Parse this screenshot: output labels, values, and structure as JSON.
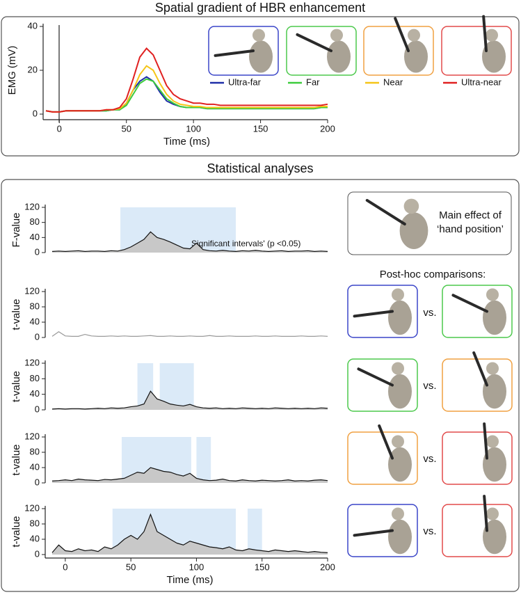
{
  "figure": {
    "title_top": "Spatial gradient of HBR enhancement",
    "title_bottom": "Statistical analyses",
    "main_effect": [
      "Main effect of",
      "‘hand position’"
    ],
    "post_hoc": "Post-hoc comparisons:",
    "vs": [
      "vs.",
      "vs.",
      "vs.",
      "vs."
    ]
  },
  "chart_data": [
    {
      "type": "line",
      "xlabel": "Time (ms)",
      "ylabel": "EMG (mV)",
      "xlim": [
        -10,
        200
      ],
      "ylim": [
        0,
        40
      ],
      "xticks": [
        0,
        50,
        100,
        150,
        200
      ],
      "yticks": [
        0,
        20,
        40
      ],
      "x": [
        -10,
        -5,
        0,
        5,
        10,
        15,
        20,
        25,
        30,
        35,
        40,
        45,
        50,
        55,
        60,
        65,
        70,
        75,
        80,
        85,
        90,
        95,
        100,
        105,
        110,
        115,
        120,
        125,
        130,
        135,
        140,
        145,
        150,
        155,
        160,
        165,
        170,
        175,
        180,
        185,
        190,
        195,
        200
      ],
      "series": [
        {
          "name": "Ultra-far",
          "color": "#1f2fa8",
          "values": [
            1.5,
            1,
            1,
            1.5,
            1.5,
            1.5,
            1.5,
            1.5,
            1.5,
            1.5,
            2,
            2,
            5,
            11,
            15,
            17,
            15,
            10,
            6,
            4.5,
            3.5,
            3,
            3,
            3,
            2.5,
            2.5,
            2.5,
            2.5,
            2.5,
            2.5,
            2.5,
            2.5,
            2.5,
            2.5,
            2.5,
            2.5,
            2.5,
            2.5,
            2.5,
            2.5,
            2.5,
            3,
            3
          ]
        },
        {
          "name": "Far",
          "color": "#3ccc3c",
          "values": [
            1.5,
            1,
            1,
            1.5,
            1.5,
            1.5,
            1.5,
            1.5,
            1.5,
            1.5,
            2,
            2,
            4,
            9,
            14,
            16,
            15,
            11,
            7,
            5,
            3.5,
            3,
            3,
            3,
            2.5,
            2.5,
            2.5,
            2.5,
            2.5,
            2.5,
            2.5,
            2.5,
            2.5,
            2.5,
            2.5,
            2.5,
            2.5,
            2.5,
            2.5,
            2.5,
            2.5,
            3,
            3
          ]
        },
        {
          "name": "Near",
          "color": "#f5c518",
          "values": [
            1.5,
            1,
            1,
            1.5,
            1.5,
            1.5,
            1.5,
            1.5,
            1.5,
            2,
            2,
            2.5,
            5,
            11,
            18,
            22,
            20,
            14,
            9,
            6,
            4.5,
            4,
            3.5,
            3.5,
            3,
            3,
            3,
            3,
            3,
            3,
            3,
            3,
            3,
            3,
            3,
            3,
            3,
            3,
            3,
            3,
            3,
            3.5,
            3.5
          ]
        },
        {
          "name": "Ultra-near",
          "color": "#e02020",
          "values": [
            1.5,
            1,
            1,
            1.5,
            1.5,
            1.5,
            1.5,
            1.5,
            1.5,
            2,
            2,
            3,
            7,
            16,
            26,
            30,
            27,
            20,
            13,
            9,
            7,
            6,
            5,
            5,
            4.5,
            4.5,
            4,
            4,
            4,
            4,
            4,
            4,
            4,
            4,
            4,
            4,
            4,
            4,
            4,
            4,
            4,
            4,
            4.5
          ]
        }
      ]
    },
    {
      "type": "line",
      "ylabel": "F-value",
      "xlim": [
        -10,
        200
      ],
      "ylim": [
        0,
        120
      ],
      "yticks": [
        0,
        40,
        80,
        120
      ],
      "fill": true,
      "interval_color": "#dbeaf8",
      "legend_label": "Significant intervals' (p <0.05)",
      "intervals": [
        [
          42,
          130
        ]
      ],
      "x": [
        -10,
        -5,
        0,
        5,
        10,
        15,
        20,
        25,
        30,
        35,
        40,
        45,
        50,
        55,
        60,
        65,
        70,
        75,
        80,
        85,
        90,
        95,
        100,
        105,
        110,
        115,
        120,
        125,
        130,
        135,
        140,
        145,
        150,
        155,
        160,
        165,
        170,
        175,
        180,
        185,
        190,
        195,
        200
      ],
      "series": [
        {
          "color": "#111111",
          "values": [
            3,
            4,
            3,
            4,
            5,
            3,
            4,
            4,
            3,
            5,
            4,
            8,
            15,
            25,
            35,
            55,
            40,
            35,
            28,
            20,
            12,
            10,
            25,
            8,
            5,
            4,
            6,
            4,
            3,
            5,
            4,
            6,
            4,
            3,
            4,
            5,
            3,
            4,
            4,
            5,
            3,
            4,
            3
          ]
        }
      ]
    },
    {
      "type": "line",
      "ylabel": "t-value",
      "xlim": [
        -10,
        200
      ],
      "ylim": [
        0,
        120
      ],
      "yticks": [
        0,
        40,
        80,
        120
      ],
      "fill": false,
      "interval_color": "#dbeaf8",
      "intervals": [],
      "x": [
        -10,
        -5,
        0,
        5,
        10,
        15,
        20,
        25,
        30,
        35,
        40,
        45,
        50,
        55,
        60,
        65,
        70,
        75,
        80,
        85,
        90,
        95,
        100,
        105,
        110,
        115,
        120,
        125,
        130,
        135,
        140,
        145,
        150,
        155,
        160,
        165,
        170,
        175,
        180,
        185,
        190,
        195,
        200
      ],
      "series": [
        {
          "color": "#999999",
          "values": [
            3,
            15,
            4,
            3,
            3,
            8,
            4,
            3,
            3,
            4,
            3,
            4,
            3,
            3,
            4,
            5,
            3,
            3,
            4,
            3,
            3,
            4,
            3,
            3,
            5,
            3,
            3,
            4,
            3,
            3,
            3,
            4,
            3,
            3,
            4,
            3,
            3,
            3,
            4,
            3,
            3,
            4,
            3
          ]
        }
      ]
    },
    {
      "type": "line",
      "ylabel": "t-value",
      "xlim": [
        -10,
        200
      ],
      "ylim": [
        0,
        120
      ],
      "yticks": [
        0,
        40,
        80,
        120
      ],
      "fill": true,
      "interval_color": "#dbeaf8",
      "intervals": [
        [
          55,
          67
        ],
        [
          72,
          98
        ]
      ],
      "x": [
        -10,
        -5,
        0,
        5,
        10,
        15,
        20,
        25,
        30,
        35,
        40,
        45,
        50,
        55,
        60,
        65,
        70,
        75,
        80,
        85,
        90,
        95,
        100,
        105,
        110,
        115,
        120,
        125,
        130,
        135,
        140,
        145,
        150,
        155,
        160,
        165,
        170,
        175,
        180,
        185,
        190,
        195,
        200
      ],
      "series": [
        {
          "color": "#111111",
          "values": [
            2,
            3,
            2,
            3,
            3,
            2,
            3,
            4,
            3,
            5,
            4,
            5,
            8,
            10,
            15,
            48,
            28,
            22,
            15,
            12,
            10,
            14,
            8,
            5,
            4,
            5,
            3,
            4,
            3,
            5,
            4,
            3,
            4,
            3,
            5,
            4,
            3,
            4,
            3,
            4,
            3,
            5,
            4
          ]
        }
      ]
    },
    {
      "type": "line",
      "ylabel": "t-value",
      "xlim": [
        -10,
        200
      ],
      "ylim": [
        0,
        120
      ],
      "yticks": [
        0,
        40,
        80,
        120
      ],
      "fill": true,
      "interval_color": "#dbeaf8",
      "intervals": [
        [
          43,
          96
        ],
        [
          100,
          111
        ]
      ],
      "x": [
        -10,
        -5,
        0,
        5,
        10,
        15,
        20,
        25,
        30,
        35,
        40,
        45,
        50,
        55,
        60,
        65,
        70,
        75,
        80,
        85,
        90,
        95,
        100,
        105,
        110,
        115,
        120,
        125,
        130,
        135,
        140,
        145,
        150,
        155,
        160,
        165,
        170,
        175,
        180,
        185,
        190,
        195,
        200
      ],
      "series": [
        {
          "color": "#111111",
          "values": [
            5,
            6,
            8,
            6,
            10,
            8,
            7,
            6,
            9,
            8,
            10,
            12,
            20,
            28,
            25,
            40,
            35,
            30,
            28,
            22,
            18,
            25,
            12,
            8,
            6,
            7,
            10,
            6,
            5,
            8,
            6,
            5,
            7,
            6,
            5,
            6,
            8,
            5,
            6,
            5,
            7,
            8,
            6
          ]
        }
      ]
    },
    {
      "type": "line",
      "ylabel": "t-value",
      "xlabel": "Time (ms)",
      "xlim": [
        -10,
        200
      ],
      "ylim": [
        0,
        120
      ],
      "xticks": [
        0,
        50,
        100,
        150,
        200
      ],
      "yticks": [
        0,
        40,
        80,
        120
      ],
      "fill": true,
      "interval_color": "#dbeaf8",
      "intervals": [
        [
          36,
          130
        ],
        [
          139,
          150
        ]
      ],
      "x": [
        -10,
        -5,
        0,
        5,
        10,
        15,
        20,
        25,
        30,
        35,
        40,
        45,
        50,
        55,
        60,
        65,
        70,
        75,
        80,
        85,
        90,
        95,
        100,
        105,
        110,
        115,
        120,
        125,
        130,
        135,
        140,
        145,
        150,
        155,
        160,
        165,
        170,
        175,
        180,
        185,
        190,
        195,
        200
      ],
      "series": [
        {
          "color": "#111111",
          "values": [
            5,
            25,
            10,
            8,
            15,
            10,
            12,
            8,
            20,
            15,
            25,
            40,
            50,
            40,
            60,
            105,
            60,
            50,
            40,
            30,
            25,
            35,
            30,
            25,
            20,
            18,
            15,
            20,
            12,
            10,
            15,
            12,
            10,
            8,
            12,
            10,
            8,
            10,
            8,
            6,
            8,
            6,
            5
          ]
        }
      ]
    }
  ]
}
